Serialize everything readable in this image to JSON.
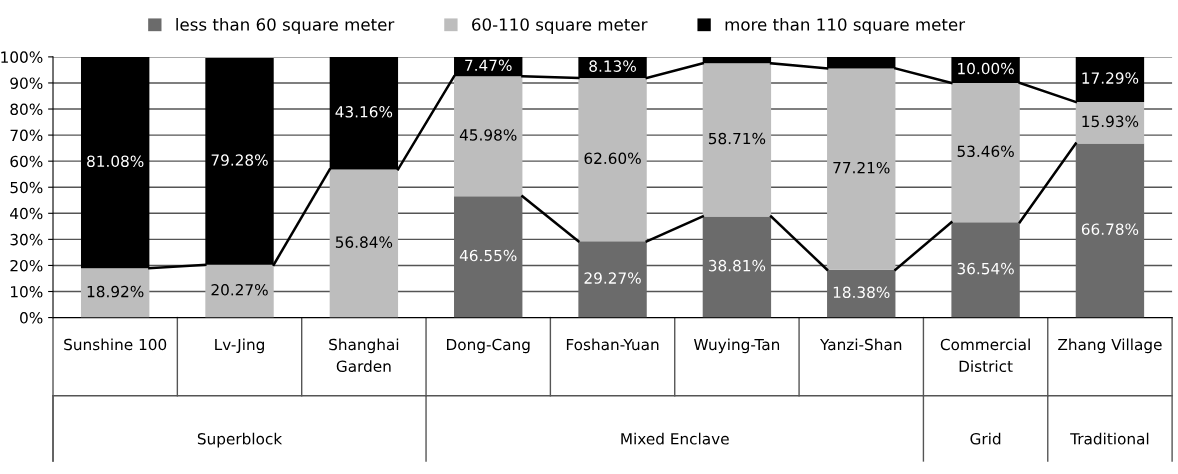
{
  "chart_data": {
    "type": "bar",
    "stacked": true,
    "categories": [
      "Sunshine 100",
      "Lv-Jing",
      "Shanghai\nGarden",
      "Dong-Cang",
      "Foshan-Yuan",
      "Wuying-Tan",
      "Yanzi-Shan",
      "Commercial\nDistrict",
      "Zhang Village"
    ],
    "series": [
      {
        "name": "less than 60 square meter",
        "color": "#6b6b6b",
        "values": [
          0,
          0,
          0,
          46.55,
          29.27,
          38.81,
          18.38,
          36.54,
          66.78
        ],
        "value_labels": [
          null,
          null,
          null,
          "46.55%",
          "29.27%",
          "38.81%",
          "18.38%",
          "36.54%",
          "66.78%"
        ]
      },
      {
        "name": "60-110 square meter",
        "color": "#bdbdbd",
        "values": [
          18.92,
          20.27,
          56.84,
          45.98,
          62.6,
          58.71,
          77.21,
          53.46,
          15.93
        ],
        "value_labels": [
          "18.92%",
          "20.27%",
          "56.84%",
          "45.98%",
          "62.60%",
          "58.71%",
          "77.21%",
          "53.46%",
          "15.93%"
        ]
      },
      {
        "name": "more than 110 square meter",
        "color": "#000000",
        "values": [
          81.08,
          79.28,
          43.16,
          7.47,
          8.13,
          2.5,
          4.4,
          10.0,
          17.29
        ],
        "value_labels": [
          "81.08%",
          "79.28%",
          "43.16%",
          "7.47%",
          "8.13%",
          null,
          null,
          "10.00%",
          "17.29%"
        ]
      }
    ],
    "ylim": [
      0,
      100
    ],
    "yticks": [
      {
        "value": 0,
        "label": "0%"
      },
      {
        "value": 10,
        "label": "10%"
      },
      {
        "value": 20,
        "label": "20%"
      },
      {
        "value": 30,
        "label": "30%"
      },
      {
        "value": 40,
        "label": "40%"
      },
      {
        "value": 50,
        "label": "50%"
      },
      {
        "value": 60,
        "label": "60%"
      },
      {
        "value": 70,
        "label": "70%"
      },
      {
        "value": 80,
        "label": "80%"
      },
      {
        "value": 90,
        "label": "90%"
      },
      {
        "value": 100,
        "label": "100%"
      }
    ],
    "annotations": [
      "Superblock",
      "Mixed Enclave",
      "Grid",
      "Traditional"
    ],
    "grid": "y",
    "legend": "top"
  }
}
